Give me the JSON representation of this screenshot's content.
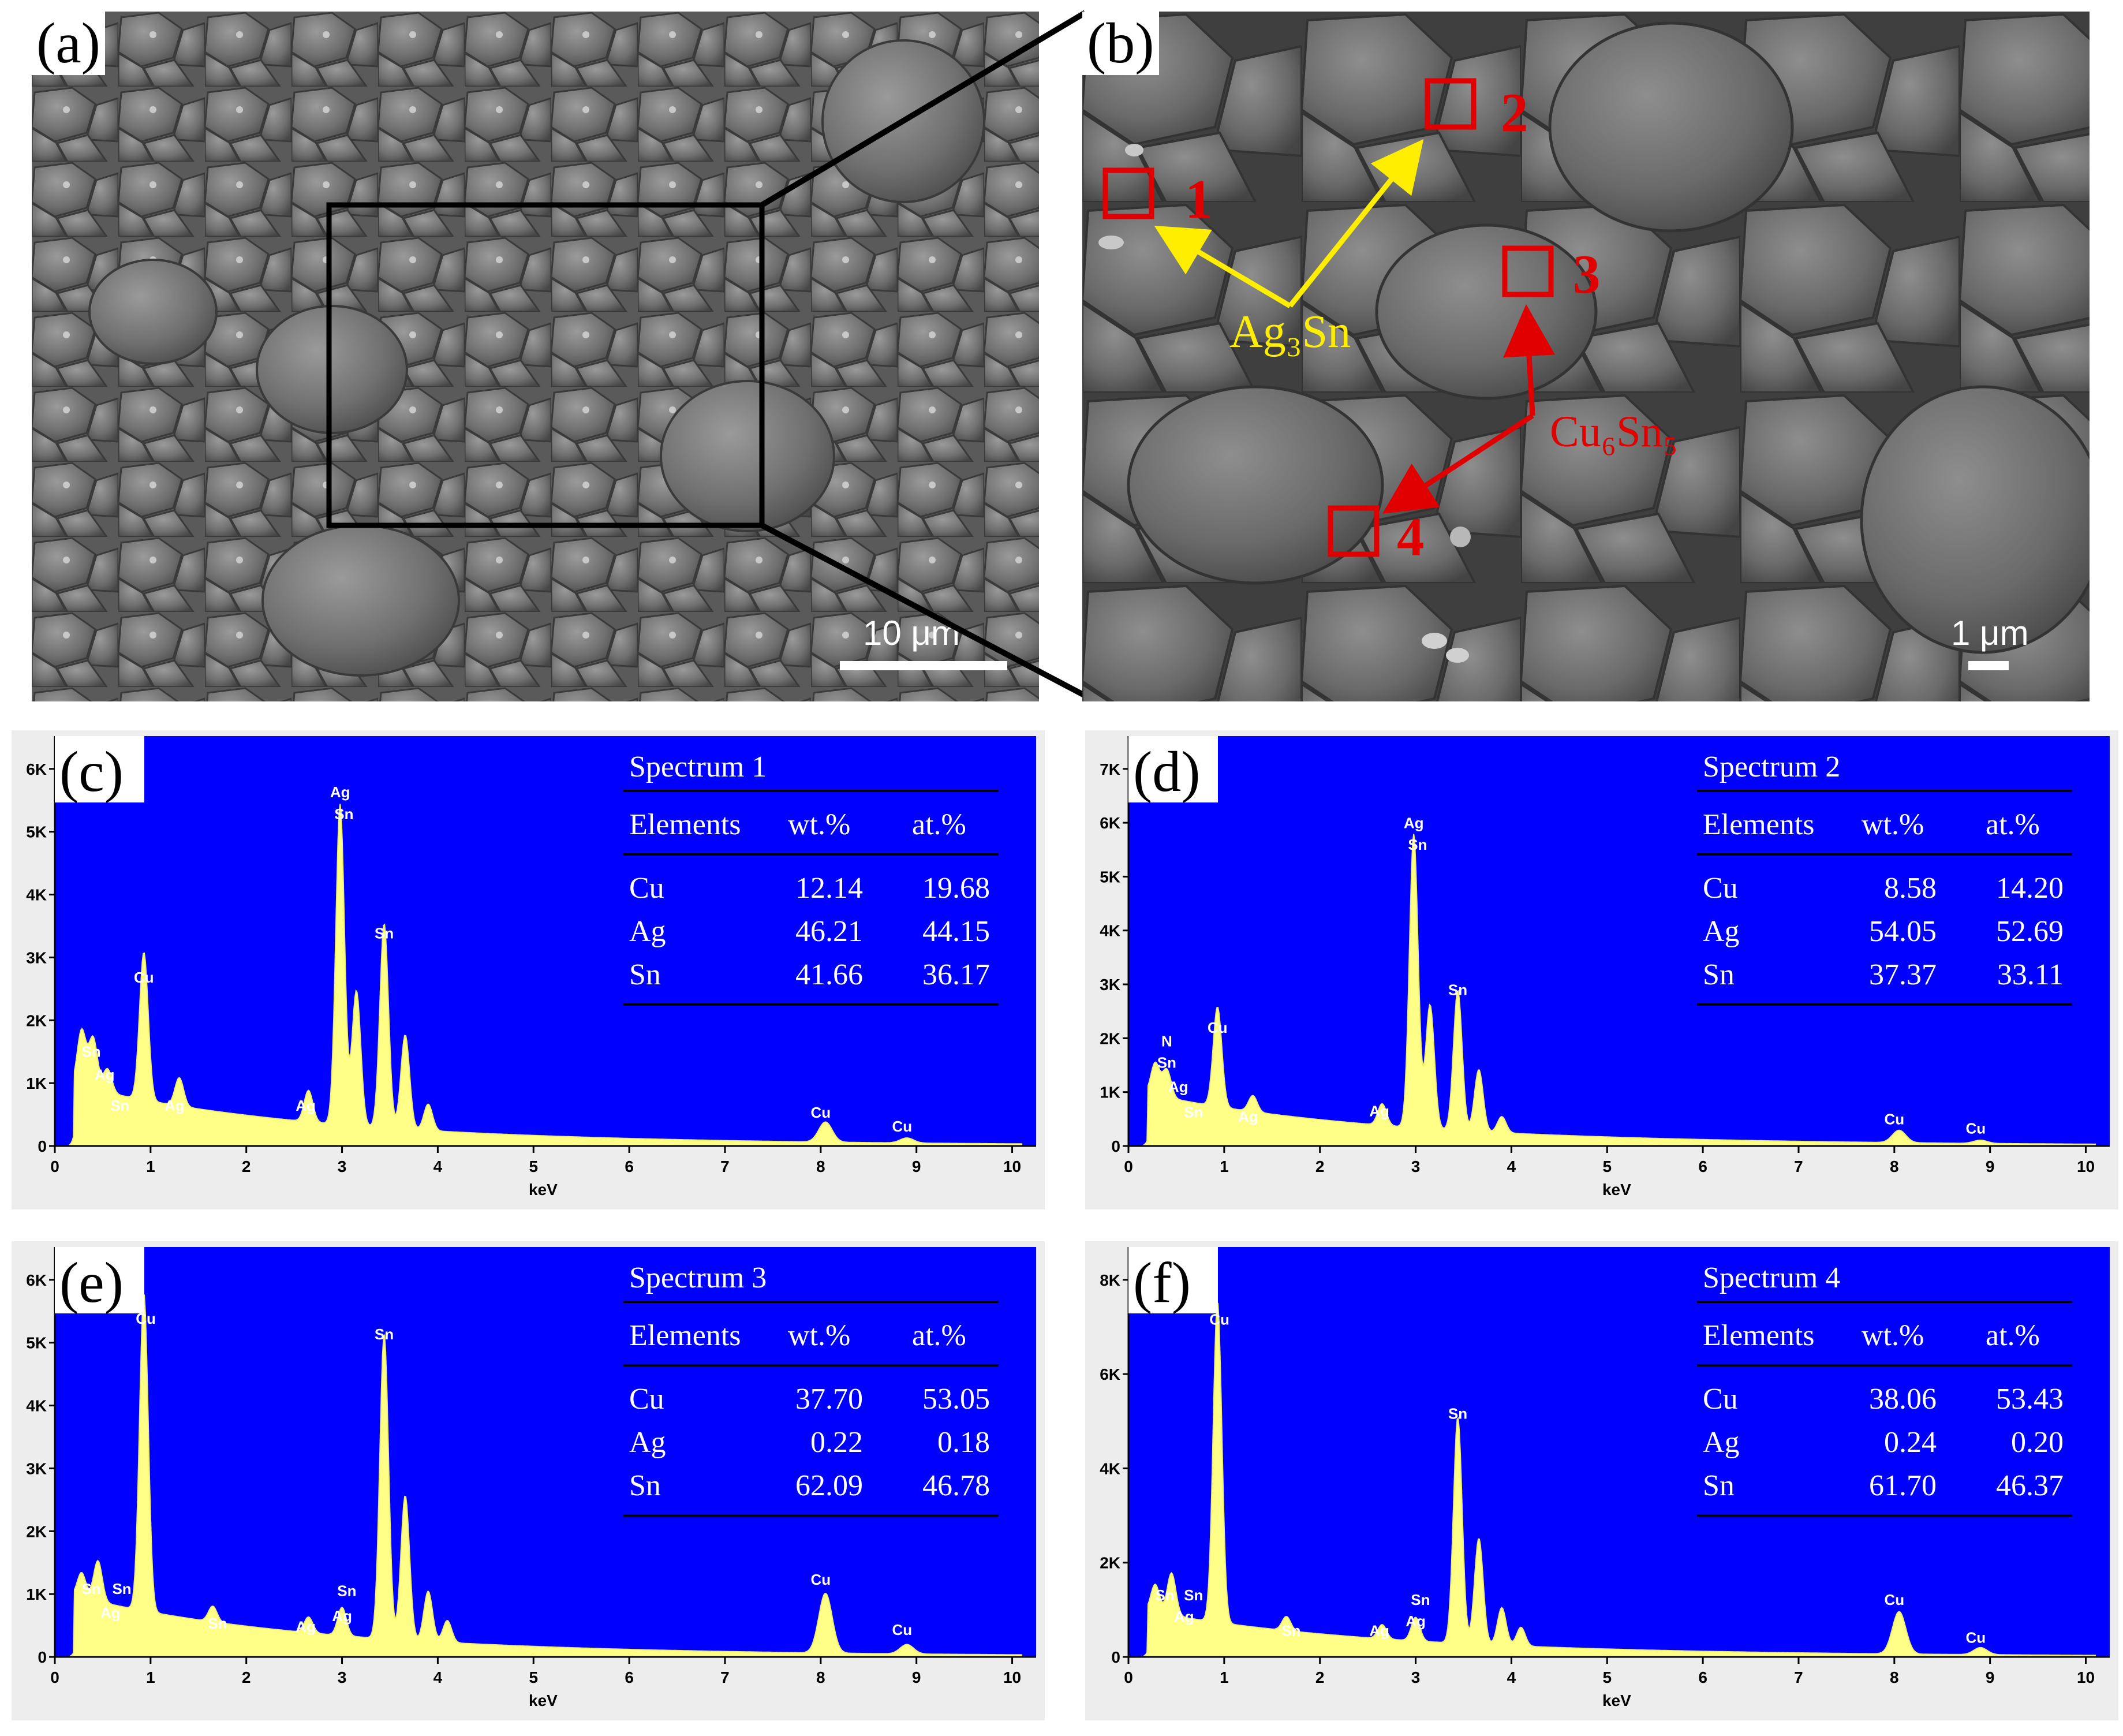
{
  "sem": {
    "a": {
      "label": "(a)",
      "scale_bar": "10 μm"
    },
    "b": {
      "label": "(b)",
      "scale_bar": "1 μm",
      "point_labels": [
        "1",
        "2",
        "3",
        "4"
      ],
      "phase_ag": "Ag₃Sn",
      "phase_cu": "Cu₆Sn₅"
    }
  },
  "colors": {
    "spectrum_bg": "#0000ff",
    "spectrum_fill": "#ffff88",
    "marker": "#e00000",
    "ag_arrow": "#ffee00",
    "cu_arrow": "#e00000"
  },
  "spectra": [
    {
      "id": "c",
      "label": "(c)",
      "title": "Spectrum 1",
      "headers": [
        "Elements",
        "wt.%",
        "at.%"
      ],
      "rows": [
        [
          "Cu",
          "12.14",
          "19.68"
        ],
        [
          "Ag",
          "46.21",
          "44.15"
        ],
        [
          "Sn",
          "41.66",
          "36.17"
        ]
      ],
      "y_ticks": [
        "0",
        "1K",
        "2K",
        "3K",
        "4K",
        "5K",
        "6K"
      ],
      "ymax": 6000,
      "x_ticks": [
        "0",
        "1",
        "2",
        "3",
        "4",
        "5",
        "6",
        "7",
        "8",
        "9",
        "10"
      ],
      "xlabel": "keV",
      "chart_data": {
        "type": "area",
        "peaks": [
          [
            0.28,
            900
          ],
          [
            0.4,
            820
          ],
          [
            0.55,
            380
          ],
          [
            0.93,
            2350
          ],
          [
            1.3,
            450
          ],
          [
            2.65,
            500
          ],
          [
            2.98,
            5100
          ],
          [
            3.15,
            2150
          ],
          [
            3.44,
            3250
          ],
          [
            3.66,
            1500
          ],
          [
            3.9,
            420
          ],
          [
            8.05,
            320
          ],
          [
            8.9,
            80
          ]
        ]
      },
      "peak_labels": [
        {
          "t": "Sn",
          "x": 0.38,
          "y": 1420
        },
        {
          "t": "Ag",
          "x": 0.52,
          "y": 1050
        },
        {
          "t": "Sn",
          "x": 0.68,
          "y": 560
        },
        {
          "t": "Cu",
          "x": 0.93,
          "y": 2600
        },
        {
          "t": "Ag",
          "x": 1.25,
          "y": 560
        },
        {
          "t": "Ag",
          "x": 2.62,
          "y": 560
        },
        {
          "t": "Ag",
          "x": 2.98,
          "y": 5550
        },
        {
          "t": "Sn",
          "x": 3.02,
          "y": 5200
        },
        {
          "t": "Sn",
          "x": 3.44,
          "y": 3300
        },
        {
          "t": "Cu",
          "x": 8.0,
          "y": 450
        },
        {
          "t": "Cu",
          "x": 8.85,
          "y": 230
        }
      ]
    },
    {
      "id": "d",
      "label": "(d)",
      "title": "Spectrum 2",
      "headers": [
        "Elements",
        "wt.%",
        "at.%"
      ],
      "rows": [
        [
          "Cu",
          "8.58",
          "14.20"
        ],
        [
          "Ag",
          "54.05",
          "52.69"
        ],
        [
          "Sn",
          "37.37",
          "33.11"
        ]
      ],
      "y_ticks": [
        "0",
        "1K",
        "2K",
        "3K",
        "4K",
        "5K",
        "6K",
        "7K"
      ],
      "ymax": 7000,
      "x_ticks": [
        "0",
        "1",
        "2",
        "3",
        "4",
        "5",
        "6",
        "7",
        "8",
        "9",
        "10"
      ],
      "xlabel": "keV",
      "chart_data": {
        "type": "area",
        "peaks": [
          [
            0.28,
            600
          ],
          [
            0.4,
            520
          ],
          [
            0.93,
            1850
          ],
          [
            1.3,
            300
          ],
          [
            2.65,
            400
          ],
          [
            2.98,
            5450
          ],
          [
            3.15,
            2300
          ],
          [
            3.44,
            2600
          ],
          [
            3.66,
            1150
          ],
          [
            3.9,
            300
          ],
          [
            8.05,
            230
          ],
          [
            8.9,
            60
          ]
        ]
      },
      "peak_labels": [
        {
          "t": "N",
          "x": 0.4,
          "y": 1850
        },
        {
          "t": "Sn",
          "x": 0.4,
          "y": 1450
        },
        {
          "t": "Ag",
          "x": 0.52,
          "y": 1000
        },
        {
          "t": "Sn",
          "x": 0.68,
          "y": 530
        },
        {
          "t": "Cu",
          "x": 0.93,
          "y": 2100
        },
        {
          "t": "Ag",
          "x": 1.25,
          "y": 450
        },
        {
          "t": "Ag",
          "x": 2.62,
          "y": 550
        },
        {
          "t": "Ag",
          "x": 2.98,
          "y": 5900
        },
        {
          "t": "Sn",
          "x": 3.02,
          "y": 5500
        },
        {
          "t": "Sn",
          "x": 3.44,
          "y": 2800
        },
        {
          "t": "Cu",
          "x": 8.0,
          "y": 400
        },
        {
          "t": "Cu",
          "x": 8.85,
          "y": 230
        }
      ]
    },
    {
      "id": "e",
      "label": "(e)",
      "title": "Spectrum 3",
      "headers": [
        "Elements",
        "wt.%",
        "at.%"
      ],
      "rows": [
        [
          "Cu",
          "37.70",
          "53.05"
        ],
        [
          "Ag",
          "0.22",
          "0.18"
        ],
        [
          "Sn",
          "62.09",
          "46.78"
        ]
      ],
      "y_ticks": [
        "0",
        "1K",
        "2K",
        "3K",
        "4K",
        "5K",
        "6K"
      ],
      "ymax": 6000,
      "x_ticks": [
        "0",
        "1",
        "2",
        "3",
        "4",
        "5",
        "6",
        "7",
        "8",
        "9",
        "10"
      ],
      "xlabel": "keV",
      "chart_data": {
        "type": "area",
        "peaks": [
          [
            0.28,
            400
          ],
          [
            0.45,
            650
          ],
          [
            0.93,
            5050
          ],
          [
            1.65,
            250
          ],
          [
            2.65,
            250
          ],
          [
            3.0,
            450
          ],
          [
            3.44,
            4850
          ],
          [
            3.66,
            2300
          ],
          [
            3.9,
            800
          ],
          [
            4.1,
            350
          ],
          [
            8.05,
            950
          ],
          [
            8.9,
            150
          ]
        ]
      },
      "peak_labels": [
        {
          "t": "Sn",
          "x": 0.38,
          "y": 1000
        },
        {
          "t": "Sn",
          "x": 0.7,
          "y": 1000
        },
        {
          "t": "Ag",
          "x": 0.58,
          "y": 620
        },
        {
          "t": "Cu",
          "x": 0.95,
          "y": 5300
        },
        {
          "t": "Sn",
          "x": 1.7,
          "y": 450
        },
        {
          "t": "Ag",
          "x": 2.62,
          "y": 400
        },
        {
          "t": "Sn",
          "x": 3.05,
          "y": 970
        },
        {
          "t": "Ag",
          "x": 3.0,
          "y": 570
        },
        {
          "t": "Sn",
          "x": 3.44,
          "y": 5050
        },
        {
          "t": "Cu",
          "x": 8.0,
          "y": 1150
        },
        {
          "t": "Cu",
          "x": 8.85,
          "y": 350
        }
      ]
    },
    {
      "id": "f",
      "label": "(f)",
      "title": "Spectrum 4",
      "headers": [
        "Elements",
        "wt.%",
        "at.%"
      ],
      "rows": [
        [
          "Cu",
          "38.06",
          "53.43"
        ],
        [
          "Ag",
          "0.24",
          "0.20"
        ],
        [
          "Sn",
          "61.70",
          "46.37"
        ]
      ],
      "y_ticks": [
        "0",
        "2K",
        "4K",
        "6K",
        "8K"
      ],
      "ymax": 8000,
      "x_ticks": [
        "0",
        "1",
        "2",
        "3",
        "4",
        "5",
        "6",
        "7",
        "8",
        "9",
        "10"
      ],
      "xlabel": "keV",
      "chart_data": {
        "type": "area",
        "peaks": [
          [
            0.28,
            600
          ],
          [
            0.45,
            900
          ],
          [
            0.93,
            6800
          ],
          [
            1.65,
            300
          ],
          [
            2.65,
            300
          ],
          [
            3.0,
            500
          ],
          [
            3.44,
            4800
          ],
          [
            3.66,
            2250
          ],
          [
            3.9,
            800
          ],
          [
            4.1,
            400
          ],
          [
            8.05,
            900
          ],
          [
            8.9,
            150
          ]
        ]
      },
      "peak_labels": [
        {
          "t": "Sn",
          "x": 0.38,
          "y": 1200
        },
        {
          "t": "Sn",
          "x": 0.68,
          "y": 1200
        },
        {
          "t": "Ag",
          "x": 0.58,
          "y": 750
        },
        {
          "t": "Cu",
          "x": 0.95,
          "y": 7050
        },
        {
          "t": "Sn",
          "x": 1.7,
          "y": 450
        },
        {
          "t": "Ag",
          "x": 2.62,
          "y": 450
        },
        {
          "t": "Sn",
          "x": 3.05,
          "y": 1100
        },
        {
          "t": "Ag",
          "x": 3.0,
          "y": 650
        },
        {
          "t": "Sn",
          "x": 3.44,
          "y": 5050
        },
        {
          "t": "Cu",
          "x": 8.0,
          "y": 1100
        },
        {
          "t": "Cu",
          "x": 8.85,
          "y": 300
        }
      ]
    }
  ]
}
